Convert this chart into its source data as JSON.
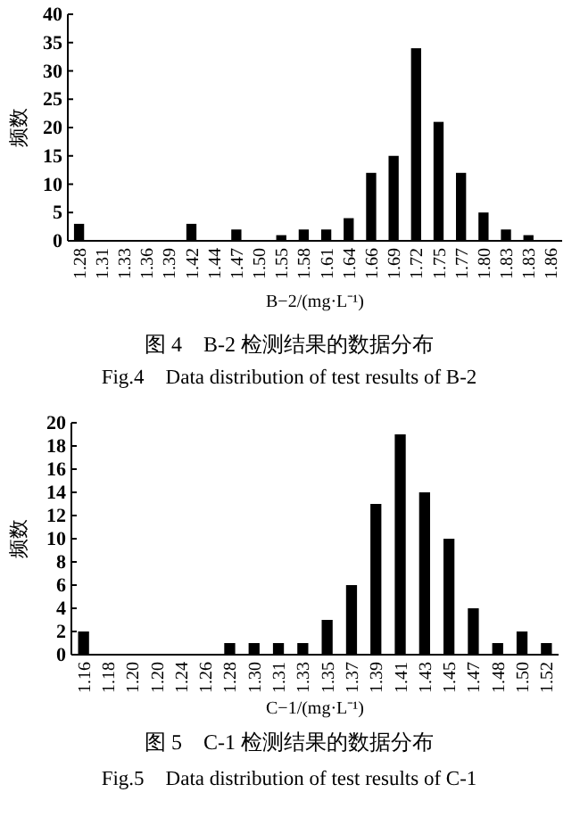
{
  "chart_data": [
    {
      "type": "bar",
      "title": "图 4　B-2 检测结果的数据分布",
      "subtitle": "Fig.4　Data distribution of test results of B-2",
      "xlabel": "B−2/(mg·L⁻¹)",
      "ylabel": "频数",
      "categories": [
        "1.28",
        "1.31",
        "1.33",
        "1.36",
        "1.39",
        "1.42",
        "1.44",
        "1.47",
        "1.50",
        "1.55",
        "1.58",
        "1.61",
        "1.64",
        "1.66",
        "1.69",
        "1.72",
        "1.75",
        "1.77",
        "1.80",
        "1.83",
        "1.83",
        "1.86"
      ],
      "series": [
        {
          "color": "#000000",
          "values": [
            3,
            0,
            0,
            0,
            0,
            3,
            0,
            2,
            0,
            1,
            2,
            2,
            4,
            12,
            15,
            34,
            21,
            12,
            5,
            2,
            1,
            0
          ]
        }
      ],
      "ylim": [
        0,
        40
      ],
      "yticks": [
        0,
        5,
        10,
        15,
        20,
        25,
        30,
        35,
        40
      ]
    },
    {
      "type": "bar",
      "title": "图 5　C-1 检测结果的数据分布",
      "subtitle": "Fig.5　Data distribution of test results of C-1",
      "xlabel": "C−1/(mg·L⁻¹)",
      "ylabel": "频数",
      "categories": [
        "1.16",
        "1.18",
        "1.20",
        "1.20",
        "1.24",
        "1.26",
        "1.28",
        "1.30",
        "1.31",
        "1.33",
        "1.35",
        "1.37",
        "1.39",
        "1.41",
        "1.43",
        "1.45",
        "1.47",
        "1.48",
        "1.50",
        "1.52"
      ],
      "series": [
        {
          "color": "#000000",
          "values": [
            2,
            0,
            0,
            0,
            0,
            0,
            1,
            1,
            1,
            1,
            3,
            6,
            13,
            19,
            14,
            10,
            4,
            1,
            2,
            1
          ]
        }
      ],
      "ylim": [
        0,
        20
      ],
      "yticks": [
        0,
        2,
        4,
        6,
        8,
        10,
        12,
        14,
        16,
        18,
        20
      ]
    }
  ]
}
